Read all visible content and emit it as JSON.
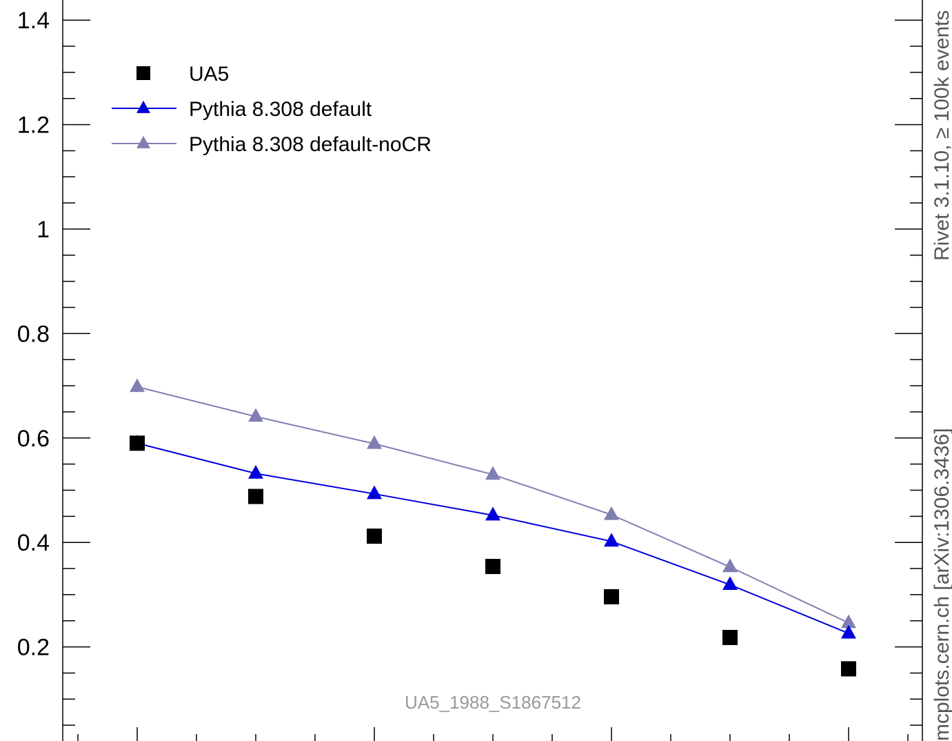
{
  "chart_data": {
    "type": "scatter",
    "analysis_tag": "UA5_1988_S1867512",
    "side_text": {
      "top": "Rivet 3.1.10, ≥ 100k events",
      "bottom": "mcplots.cern.ch [arXiv:1306.3436]"
    },
    "ylim": [
      0.03,
      1.44
    ],
    "ytick_labels": [
      "0.2",
      "0.4",
      "0.6",
      "0.8",
      "1",
      "1.2",
      "1.4"
    ],
    "yticks": [
      0.2,
      0.4,
      0.6,
      0.8,
      1.0,
      1.2,
      1.4
    ],
    "x": [
      1,
      2,
      3,
      4,
      5,
      6,
      7
    ],
    "series": [
      {
        "name": "UA5",
        "marker": "square",
        "color": "#000000",
        "line": false,
        "values": [
          0.59,
          0.488,
          0.412,
          0.354,
          0.296,
          0.218,
          0.158
        ]
      },
      {
        "name": "Pythia 8.308 default",
        "marker": "triangle",
        "color": "#0000dd",
        "line": true,
        "values": [
          0.59,
          0.532,
          0.493,
          0.452,
          0.402,
          0.319,
          0.226
        ]
      },
      {
        "name": "Pythia 8.308 default-noCR",
        "marker": "triangle",
        "color": "#7f7fb2",
        "line": true,
        "values": [
          0.698,
          0.641,
          0.589,
          0.53,
          0.453,
          0.353,
          0.246
        ]
      }
    ]
  }
}
